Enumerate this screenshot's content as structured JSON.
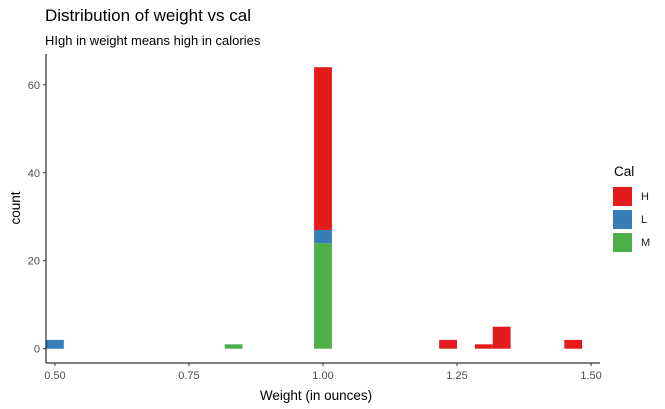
{
  "title": "Distribution of weight vs cal",
  "subtitle": "HIgh in weight means high in calories",
  "chart_data": {
    "type": "bar",
    "subtype": "stacked-histogram",
    "title": "Distribution of weight vs cal",
    "subtitle": "HIgh in weight means high in calories",
    "xlabel": "Weight (in ounces)",
    "ylabel": "count",
    "xlim": [
      0.5,
      1.5
    ],
    "ylim": [
      0,
      65
    ],
    "xticks": [
      0.5,
      0.75,
      1.0,
      1.25,
      1.5
    ],
    "xtick_labels": [
      "0.50",
      "0.75",
      "1.00",
      "1.25",
      "1.50"
    ],
    "yticks": [
      0,
      20,
      40,
      60
    ],
    "ytick_labels": [
      "0",
      "20",
      "40",
      "60"
    ],
    "bin_width": 0.0333,
    "grid": false,
    "legend": {
      "title": "Cal",
      "position": "right",
      "entries": [
        "H",
        "L",
        "M"
      ]
    },
    "series": [
      {
        "name": "H",
        "color": "#E41A1C",
        "bins": [
          {
            "x": 1.0,
            "value": 37
          },
          {
            "x": 1.2333,
            "value": 2
          },
          {
            "x": 1.3,
            "value": 1
          },
          {
            "x": 1.3333,
            "value": 5
          },
          {
            "x": 1.4667,
            "value": 2
          }
        ]
      },
      {
        "name": "L",
        "color": "#377EB8",
        "bins": [
          {
            "x": 0.5,
            "value": 2
          },
          {
            "x": 1.0,
            "value": 3
          }
        ]
      },
      {
        "name": "M",
        "color": "#4DAF4A",
        "bins": [
          {
            "x": 0.8333,
            "value": 1
          },
          {
            "x": 1.0,
            "value": 24
          }
        ]
      }
    ]
  }
}
